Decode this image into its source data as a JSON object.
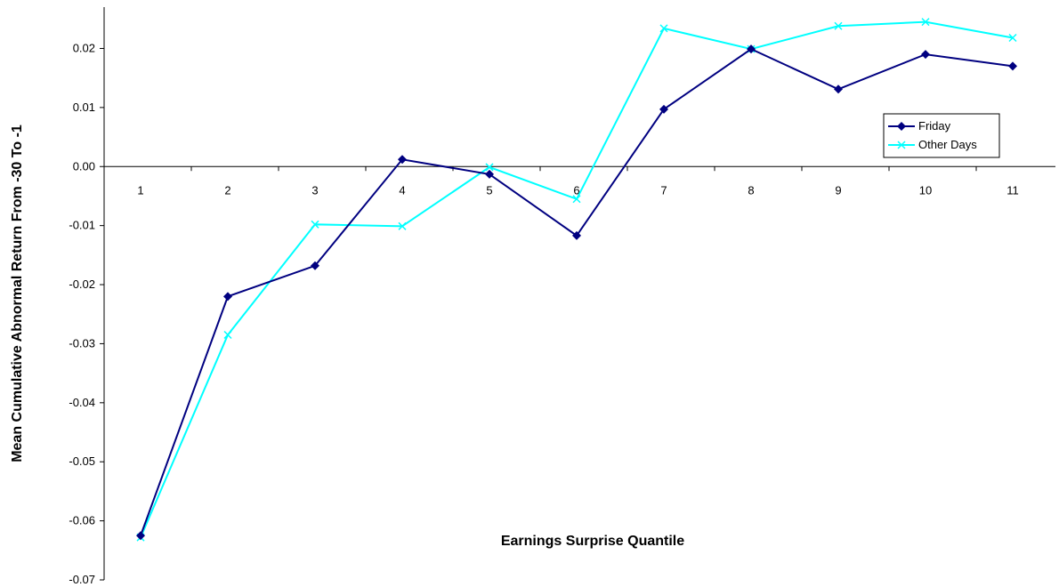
{
  "chart_data": {
    "type": "line",
    "title": "",
    "xlabel": "Earnings Surprise Quantile",
    "ylabel": "Mean Cumulative Abnormal Return From -30 To -1",
    "categories": [
      "1",
      "2",
      "3",
      "4",
      "5",
      "6",
      "7",
      "8",
      "9",
      "10",
      "11"
    ],
    "ylim": [
      -0.07,
      0.027
    ],
    "yticks": [
      "0.02",
      "0.01",
      "0.00",
      "-0.01",
      "-0.02",
      "-0.03",
      "-0.04",
      "-0.05",
      "-0.06",
      "-0.07"
    ],
    "ytick_values": [
      0.02,
      0.01,
      0.0,
      -0.01,
      -0.02,
      -0.03,
      -0.04,
      -0.05,
      -0.06,
      -0.07
    ],
    "grid": false,
    "legend_position": "right",
    "series": [
      {
        "name": "Friday",
        "color": "#000080",
        "marker": "diamond",
        "values": [
          -0.0625,
          -0.022,
          -0.0168,
          0.0012,
          -0.0013,
          -0.0117,
          0.0097,
          0.0199,
          0.0131,
          0.019,
          0.017
        ]
      },
      {
        "name": "Other Days",
        "color": "#00FFFF",
        "marker": "x",
        "values": [
          -0.0628,
          -0.0285,
          -0.0098,
          -0.0101,
          -0.0001,
          -0.0055,
          0.0234,
          0.0199,
          0.0238,
          0.0245,
          0.0218
        ]
      }
    ]
  }
}
